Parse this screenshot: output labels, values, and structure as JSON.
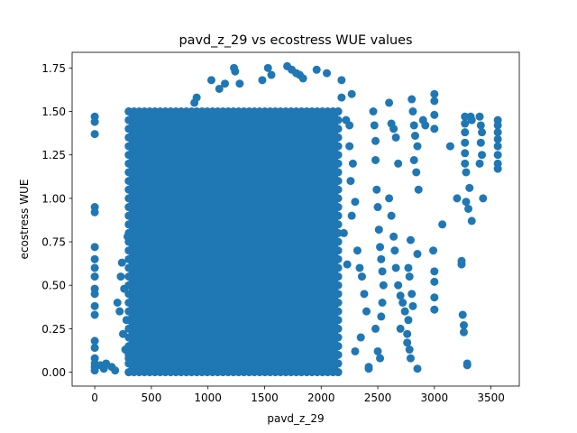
{
  "chart_data": {
    "type": "scatter",
    "title": "pavd_z_29 vs ecostress WUE values",
    "xlabel": "pavd_z_29",
    "ylabel": "ecostress WUE",
    "xlim": [
      -200,
      3750
    ],
    "ylim": [
      -0.08,
      1.84
    ],
    "x_ticks": [
      0,
      500,
      1000,
      1500,
      2000,
      2500,
      3000,
      3500
    ],
    "x_tick_labels": [
      "0",
      "500",
      "1000",
      "1500",
      "2000",
      "2500",
      "3000",
      "3500"
    ],
    "y_ticks": [
      0.0,
      0.25,
      0.5,
      0.75,
      1.0,
      1.25,
      1.5,
      1.75
    ],
    "y_tick_labels": [
      "0.00",
      "0.25",
      "0.50",
      "0.75",
      "1.00",
      "1.25",
      "1.50",
      "1.75"
    ],
    "grid": false,
    "point_color": "#1f77b4",
    "dense_region": {
      "x": [
        300,
        2150
      ],
      "y": [
        0.0,
        1.5
      ]
    },
    "points": [
      [
        0,
        1.47
      ],
      [
        0,
        1.44
      ],
      [
        0,
        1.37
      ],
      [
        0,
        0.95
      ],
      [
        0,
        0.92
      ],
      [
        0,
        0.72
      ],
      [
        0,
        0.65
      ],
      [
        0,
        0.6
      ],
      [
        0,
        0.55
      ],
      [
        0,
        0.48
      ],
      [
        0,
        0.45
      ],
      [
        0,
        0.38
      ],
      [
        0,
        0.33
      ],
      [
        0,
        0.18
      ],
      [
        0,
        0.14
      ],
      [
        0,
        0.08
      ],
      [
        0,
        0.05
      ],
      [
        0,
        0.03
      ],
      [
        0,
        0.01
      ],
      [
        50,
        0.04
      ],
      [
        80,
        0.02
      ],
      [
        100,
        0.05
      ],
      [
        150,
        0.03
      ],
      [
        180,
        0.01
      ],
      [
        200,
        0.4
      ],
      [
        220,
        0.35
      ],
      [
        230,
        0.55
      ],
      [
        240,
        0.63
      ],
      [
        250,
        0.22
      ],
      [
        260,
        0.48
      ],
      [
        270,
        0.13
      ],
      [
        280,
        0.3
      ],
      [
        290,
        0.78
      ],
      [
        300,
        0.08
      ],
      [
        1230,
        1.75
      ],
      [
        1240,
        1.73
      ],
      [
        1280,
        1.66
      ],
      [
        1480,
        1.68
      ],
      [
        1530,
        1.75
      ],
      [
        1560,
        1.71
      ],
      [
        1700,
        1.76
      ],
      [
        1740,
        1.74
      ],
      [
        1780,
        1.72
      ],
      [
        1810,
        1.71
      ],
      [
        1840,
        1.69
      ],
      [
        1960,
        1.74
      ],
      [
        2050,
        1.72
      ],
      [
        2180,
        1.68
      ],
      [
        2270,
        1.6
      ],
      [
        1030,
        1.68
      ],
      [
        1100,
        1.63
      ],
      [
        1150,
        1.66
      ],
      [
        900,
        1.58
      ],
      [
        880,
        1.55
      ],
      [
        2180,
        1.58
      ],
      [
        2220,
        1.45
      ],
      [
        2250,
        1.42
      ],
      [
        2280,
        1.2
      ],
      [
        2300,
        0.98
      ],
      [
        2320,
        0.7
      ],
      [
        2340,
        0.6
      ],
      [
        2360,
        0.55
      ],
      [
        2380,
        0.45
      ],
      [
        2400,
        0.35
      ],
      [
        2350,
        0.2
      ],
      [
        2300,
        0.12
      ],
      [
        2420,
        0.02
      ],
      [
        2250,
        1.3
      ],
      [
        2260,
        1.1
      ],
      [
        2270,
        0.9
      ],
      [
        2200,
        0.8
      ],
      [
        2230,
        0.62
      ],
      [
        2460,
        1.5
      ],
      [
        2470,
        1.42
      ],
      [
        2480,
        1.33
      ],
      [
        2480,
        1.22
      ],
      [
        2490,
        1.05
      ],
      [
        2500,
        0.95
      ],
      [
        2510,
        0.82
      ],
      [
        2520,
        0.72
      ],
      [
        2530,
        0.65
      ],
      [
        2540,
        0.58
      ],
      [
        2550,
        0.5
      ],
      [
        2540,
        0.4
      ],
      [
        2530,
        0.32
      ],
      [
        2480,
        0.25
      ],
      [
        2500,
        0.12
      ],
      [
        2520,
        0.08
      ],
      [
        2600,
        1.55
      ],
      [
        2620,
        1.43
      ],
      [
        2640,
        1.4
      ],
      [
        2660,
        1.35
      ],
      [
        2680,
        1.2
      ],
      [
        2600,
        1.0
      ],
      [
        2620,
        0.9
      ],
      [
        2640,
        0.78
      ],
      [
        2650,
        0.7
      ],
      [
        2660,
        0.6
      ],
      [
        2680,
        0.5
      ],
      [
        2700,
        0.44
      ],
      [
        2720,
        0.4
      ],
      [
        2740,
        0.35
      ],
      [
        2700,
        0.25
      ],
      [
        2760,
        0.17
      ],
      [
        2780,
        0.13
      ],
      [
        2790,
        0.08
      ],
      [
        2800,
        1.57
      ],
      [
        2810,
        1.5
      ],
      [
        2820,
        1.42
      ],
      [
        2830,
        1.36
      ],
      [
        2850,
        1.3
      ],
      [
        2820,
        1.22
      ],
      [
        2840,
        1.15
      ],
      [
        2860,
        1.05
      ],
      [
        2770,
        0.6
      ],
      [
        2780,
        0.55
      ],
      [
        2800,
        0.45
      ],
      [
        2810,
        0.38
      ],
      [
        2900,
        1.45
      ],
      [
        2920,
        1.42
      ],
      [
        2850,
        0.68
      ],
      [
        2790,
        0.76
      ],
      [
        2770,
        0.3
      ],
      [
        2760,
        0.22
      ],
      [
        2850,
        0.02
      ],
      [
        3000,
        1.6
      ],
      [
        3000,
        1.56
      ],
      [
        3000,
        1.48
      ],
      [
        3000,
        1.4
      ],
      [
        3000,
        0.58
      ],
      [
        3000,
        0.52
      ],
      [
        3000,
        0.43
      ],
      [
        3000,
        0.36
      ],
      [
        2990,
        0.7
      ],
      [
        3070,
        0.85
      ],
      [
        3140,
        1.3
      ],
      [
        3200,
        1.0
      ],
      [
        3280,
        0.98
      ],
      [
        3330,
        0.87
      ],
      [
        3240,
        0.62
      ],
      [
        3240,
        0.64
      ],
      [
        3250,
        0.33
      ],
      [
        3260,
        0.27
      ],
      [
        3260,
        0.23
      ],
      [
        3290,
        0.04
      ],
      [
        3290,
        0.05
      ],
      [
        3270,
        1.47
      ],
      [
        3270,
        1.43
      ],
      [
        3270,
        1.38
      ],
      [
        3270,
        1.32
      ],
      [
        3270,
        1.26
      ],
      [
        3270,
        1.2
      ],
      [
        3280,
        1.15
      ],
      [
        3300,
        0.94
      ],
      [
        3310,
        1.06
      ],
      [
        3320,
        1.47
      ],
      [
        3330,
        1.45
      ],
      [
        3400,
        1.47
      ],
      [
        3410,
        1.42
      ],
      [
        3420,
        1.38
      ],
      [
        3410,
        1.32
      ],
      [
        3420,
        1.25
      ],
      [
        3400,
        1.2
      ],
      [
        3430,
        1.0
      ],
      [
        3560,
        1.45
      ],
      [
        3560,
        1.42
      ],
      [
        3560,
        1.38
      ],
      [
        3560,
        1.34
      ],
      [
        3560,
        1.3
      ],
      [
        3560,
        1.25
      ],
      [
        3560,
        1.2
      ],
      [
        3560,
        1.17
      ],
      [
        2420,
        0.03
      ],
      [
        1800,
        0.02
      ],
      [
        1600,
        0.01
      ],
      [
        400,
        0.01
      ],
      [
        350,
        0.15
      ],
      [
        330,
        0.3
      ]
    ]
  }
}
